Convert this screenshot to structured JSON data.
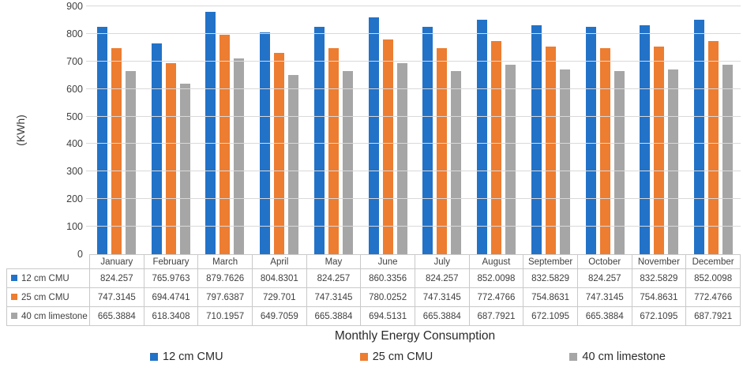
{
  "colors": {
    "series_blue": "#2272C8",
    "series_orange": "#ED7D31",
    "series_gray": "#A6A6A6",
    "gridline": "#D9D9D9",
    "table_border": "#C9C9C9",
    "text": "#404040"
  },
  "chart_data": {
    "type": "bar",
    "title": "",
    "xlabel": "Monthly Energy Consumption",
    "ylabel": "(KWh)",
    "ylim": [
      0,
      900
    ],
    "yticks": [
      0,
      100,
      200,
      300,
      400,
      500,
      600,
      700,
      800,
      900
    ],
    "grid": true,
    "legend_position": "bottom",
    "data_table_with_legend_keys": true,
    "categories": [
      "January",
      "February",
      "March",
      "April",
      "May",
      "June",
      "July",
      "August",
      "September",
      "October",
      "November",
      "December"
    ],
    "series": [
      {
        "name": "12 cm CMU",
        "color": "#2272C8",
        "values": [
          824.257,
          765.9763,
          879.7626,
          804.8301,
          824.257,
          860.3356,
          824.257,
          852.0098,
          832.5829,
          824.257,
          832.5829,
          852.0098
        ]
      },
      {
        "name": "25 cm CMU",
        "color": "#ED7D31",
        "values": [
          747.3145,
          694.4741,
          797.6387,
          729.701,
          747.3145,
          780.0252,
          747.3145,
          772.4766,
          754.8631,
          747.3145,
          754.8631,
          772.4766
        ]
      },
      {
        "name": "40 cm limestone",
        "color": "#A6A6A6",
        "values": [
          665.3884,
          618.3408,
          710.1957,
          649.7059,
          665.3884,
          694.5131,
          665.3884,
          687.7921,
          672.1095,
          665.3884,
          672.1095,
          687.7921
        ]
      }
    ]
  }
}
